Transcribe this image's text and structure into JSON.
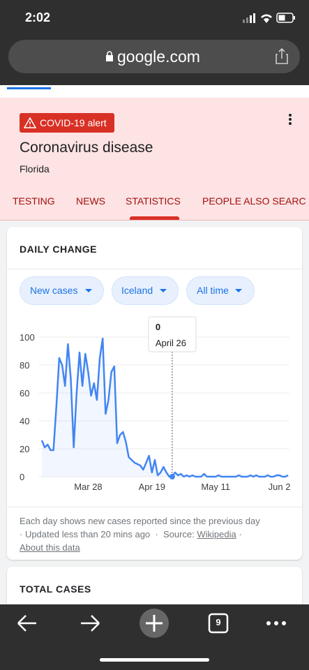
{
  "status": {
    "time": "2:02"
  },
  "url": "google.com",
  "alert": "COVID-19 alert",
  "title": "Coronavirus disease",
  "location": "Florida",
  "tabs": [
    "TESTING",
    "NEWS",
    "STATISTICS",
    "PEOPLE ALSO SEARC"
  ],
  "card": {
    "title": "DAILY CHANGE",
    "chips": [
      "New cases",
      "Iceland",
      "All time"
    ]
  },
  "chart_data": {
    "type": "line",
    "color": "#4285f4",
    "grid": true,
    "categories": [
      null,
      null,
      null,
      null,
      null,
      null,
      null,
      null,
      null,
      null,
      null,
      null,
      null,
      null,
      null,
      null,
      "Mar 28",
      null,
      null,
      null,
      null,
      null,
      null,
      null,
      null,
      null,
      null,
      null,
      null,
      null,
      null,
      null,
      null,
      null,
      null,
      null,
      null,
      null,
      "Apr 19",
      null,
      null,
      null,
      null,
      null,
      null,
      null,
      null,
      null,
      null,
      null,
      null,
      null,
      null,
      null,
      null,
      null,
      null,
      null,
      null,
      null,
      "May 11",
      null,
      null,
      null,
      null,
      null,
      null,
      null,
      null,
      null,
      null,
      null,
      null,
      null,
      null,
      null,
      null,
      null,
      null,
      null,
      null,
      null,
      "Jun 2",
      null,
      null,
      null
    ],
    "values": [
      26,
      21,
      23,
      19,
      19,
      50,
      85,
      80,
      65,
      95,
      70,
      21,
      60,
      89,
      65,
      88,
      75,
      58,
      67,
      55,
      85,
      99,
      45,
      55,
      75,
      79,
      24,
      30,
      32,
      25,
      14,
      12,
      10,
      9,
      8,
      5,
      10,
      15,
      3,
      12,
      1,
      3,
      7,
      3,
      0,
      0,
      3,
      1,
      2,
      0,
      1,
      0,
      1,
      0,
      0,
      0,
      2,
      0,
      0,
      0,
      0,
      1,
      0,
      0,
      0,
      0,
      0,
      0,
      1,
      0,
      0,
      0,
      1,
      0,
      1,
      0,
      0,
      0,
      1,
      0,
      0,
      1,
      1,
      0,
      0,
      1
    ],
    "ylim": [
      0,
      100
    ],
    "yticks": [
      0,
      20,
      40,
      60,
      80,
      100
    ],
    "annotation": "April 26"
  },
  "footer": {
    "text1": "Each day shows new cases reported since the previous day",
    "text2": "· Updated less than 20 mins ago  ·  Source:",
    "source": "Wikipedia",
    "sep": "·",
    "link": "About this data"
  },
  "card2": {
    "title": "TOTAL CASES"
  },
  "nav": {
    "tabs": "9"
  }
}
